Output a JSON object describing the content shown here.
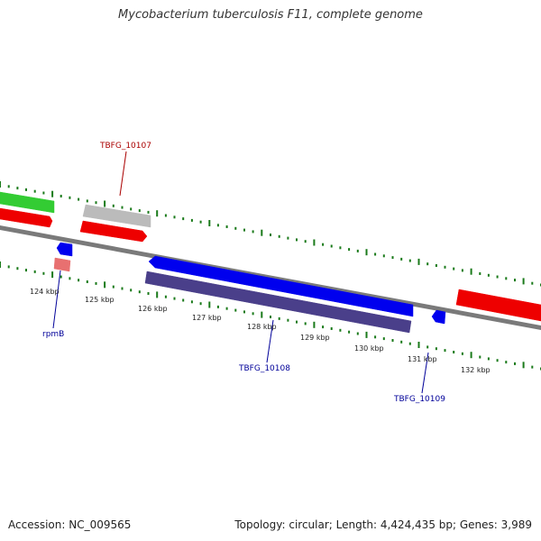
{
  "title": "Mycobacterium tuberculosis F11, complete genome",
  "footer": {
    "accession": "Accession: NC_009565",
    "summary": "Topology: circular; Length: 4,424,435 bp; Genes: 3,989"
  },
  "colors": {
    "backbone": "#7a7a7a",
    "tick": "#1a7a1a",
    "cds_red": "#ee0000",
    "cds_green": "#33cc33",
    "cds_gray": "#bbbbbb",
    "cds_blue": "#0000ee",
    "cds_purple": "#4a3f8a",
    "rna_pink": "#e87070",
    "label_red": "#aa0000",
    "label_blue": "#000099"
  },
  "ticks": [
    {
      "label": "124 kbp"
    },
    {
      "label": "125 kbp"
    },
    {
      "label": "126 kbp"
    },
    {
      "label": "127 kbp"
    },
    {
      "label": "128 kbp"
    },
    {
      "label": "129 kbp"
    },
    {
      "label": "130 kbp"
    },
    {
      "label": "131 kbp"
    },
    {
      "label": "132 kbp"
    }
  ],
  "gene_labels": {
    "tbfg_10107": "TBFG_10107",
    "rpmB": "rpmB",
    "tbfg_10108": "TBFG_10108",
    "tbfg_10109": "TBFG_10109"
  }
}
